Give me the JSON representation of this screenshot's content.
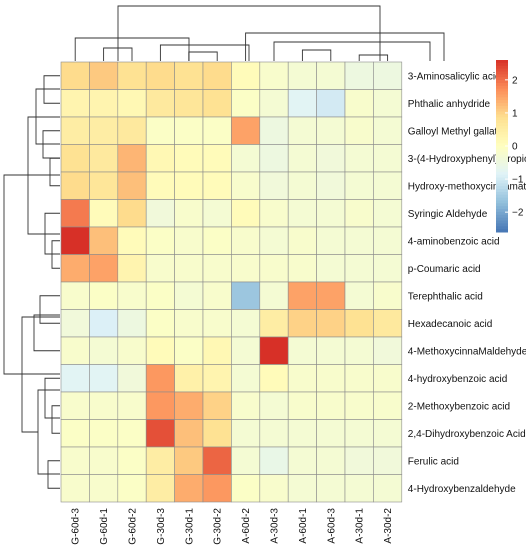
{
  "chart_data": {
    "type": "heatmap",
    "title": "",
    "xlabel": "",
    "ylabel": "",
    "columns": [
      "G-60d-3",
      "G-60d-1",
      "G-60d-2",
      "G-30d-3",
      "G-30d-1",
      "G-30d-2",
      "A-60d-2",
      "A-30d-3",
      "A-60d-1",
      "A-60d-3",
      "A-30d-1",
      "A-30d-2"
    ],
    "rows": [
      "3-Aminosalicylic acid",
      "Phthalic anhydride",
      "Galloyl Methyl gallate",
      "3-(4-Hydroxyphenyl)-propionic acid",
      "Hydroxy-methoxycinnamate",
      "Syringic Aldehyde",
      "4-aminobenzoic acid",
      "p-Coumaric acid",
      "Terephthalic acid",
      "Hexadecanoic acid",
      "4-MethoxycinnaMaldehyde",
      "4-hydroxybenzoic acid",
      "2-Methoxybenzoic acid",
      "2,4-Dihydroxybenzoic Acid",
      "Ferulic acid",
      "4-Hydroxybenzaldehyde"
    ],
    "values": [
      [
        0.9,
        1.1,
        0.8,
        0.9,
        0.8,
        0.9,
        0.1,
        -0.2,
        -0.3,
        -0.3,
        -0.5,
        -0.5
      ],
      [
        0.3,
        0.3,
        0.2,
        0.6,
        0.7,
        0.8,
        -0.1,
        -0.3,
        -0.8,
        -1.0,
        -0.2,
        -0.3
      ],
      [
        0.5,
        0.5,
        0.6,
        -0.1,
        -0.1,
        -0.1,
        1.5,
        -0.5,
        -0.3,
        -0.3,
        -0.2,
        -0.3
      ],
      [
        0.8,
        0.6,
        1.3,
        0.2,
        0.1,
        0.1,
        -0.3,
        -0.5,
        -0.3,
        -0.4,
        -0.3,
        -0.3
      ],
      [
        0.9,
        0.7,
        1.2,
        0.1,
        0.1,
        0.1,
        -0.2,
        -0.4,
        -0.3,
        -0.4,
        -0.3,
        -0.3
      ],
      [
        1.9,
        0.1,
        0.9,
        -0.4,
        -0.2,
        -0.3,
        0.1,
        -0.2,
        -0.3,
        -0.3,
        -0.2,
        -0.3
      ],
      [
        2.6,
        1.2,
        0.1,
        -0.1,
        -0.2,
        -0.1,
        -0.2,
        -0.3,
        -0.2,
        -0.3,
        -0.3,
        -0.3
      ],
      [
        1.4,
        1.5,
        0.3,
        -0.2,
        -0.2,
        -0.2,
        -0.2,
        -0.2,
        -0.2,
        -0.3,
        -0.3,
        -0.3
      ],
      [
        -0.2,
        -0.1,
        -0.2,
        -0.1,
        -0.3,
        -0.2,
        -1.6,
        -0.3,
        1.5,
        1.5,
        -0.3,
        -0.2
      ],
      [
        -0.4,
        -0.9,
        -0.5,
        -0.1,
        -0.2,
        -0.2,
        -0.3,
        0.5,
        1.0,
        1.0,
        0.8,
        0.6
      ],
      [
        -0.2,
        -0.3,
        -0.2,
        0.1,
        -0.1,
        0.2,
        -0.3,
        2.6,
        -0.3,
        -0.3,
        -0.3,
        -0.4
      ],
      [
        -0.8,
        -0.8,
        -0.4,
        1.6,
        0.4,
        0.3,
        -0.3,
        0.1,
        -0.2,
        -0.2,
        -0.2,
        -0.2
      ],
      [
        -0.2,
        -0.2,
        -0.2,
        1.6,
        1.4,
        1.0,
        -0.2,
        -0.3,
        -0.2,
        -0.2,
        -0.2,
        -0.2
      ],
      [
        -0.1,
        -0.1,
        -0.1,
        2.3,
        1.2,
        0.8,
        -0.3,
        -0.3,
        -0.3,
        -0.3,
        -0.3,
        -0.3
      ],
      [
        -0.2,
        -0.2,
        -0.1,
        0.5,
        1.1,
        2.1,
        -0.3,
        -0.6,
        -0.3,
        -0.3,
        -0.4,
        -0.4
      ],
      [
        -0.2,
        -0.2,
        -0.1,
        0.5,
        1.4,
        1.6,
        -0.1,
        -0.2,
        -0.3,
        -0.3,
        -0.3,
        -0.3
      ]
    ],
    "colorbar": {
      "ticks": [
        2,
        1,
        0,
        -1,
        -2
      ],
      "vmin": -2.6,
      "vmax": 2.6,
      "low_color": "#4575b4",
      "mid_color": "#ffffbf",
      "high_color": "#d73027"
    },
    "grid": true
  }
}
